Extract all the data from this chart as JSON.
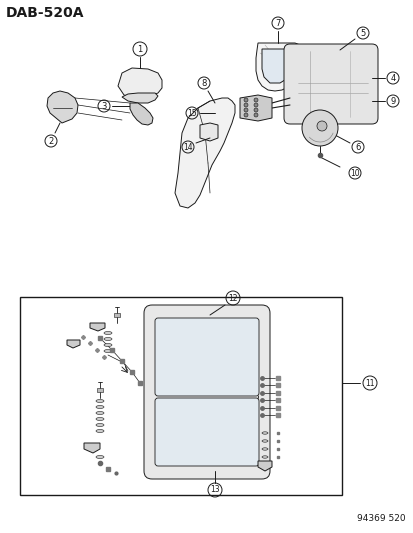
{
  "title": "DAB-520A",
  "footer": "94369 520",
  "bg_color": "#ffffff",
  "line_color": "#1a1a1a",
  "title_fontsize": 10,
  "footer_fontsize": 6.5,
  "figsize": [
    4.14,
    5.33
  ],
  "dpi": 100
}
